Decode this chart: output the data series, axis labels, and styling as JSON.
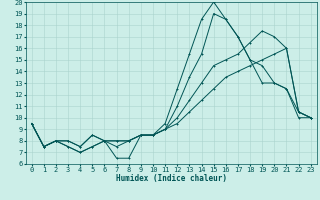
{
  "title": "",
  "xlabel": "Humidex (Indice chaleur)",
  "background_color": "#cceee8",
  "grid_color": "#aad4ce",
  "line_color": "#005555",
  "xlim": [
    -0.5,
    23.5
  ],
  "ylim": [
    6,
    20
  ],
  "xticks": [
    0,
    1,
    2,
    3,
    4,
    5,
    6,
    7,
    8,
    9,
    10,
    11,
    12,
    13,
    14,
    15,
    16,
    17,
    18,
    19,
    20,
    21,
    22,
    23
  ],
  "yticks": [
    6,
    7,
    8,
    9,
    10,
    11,
    12,
    13,
    14,
    15,
    16,
    17,
    18,
    19,
    20
  ],
  "lines": [
    {
      "x": [
        0,
        1,
        2,
        3,
        4,
        5,
        6,
        7,
        8,
        9,
        10,
        11,
        12,
        13,
        14,
        15,
        16,
        17,
        18,
        19,
        20,
        21,
        22,
        23
      ],
      "y": [
        9.5,
        7.5,
        8.0,
        8.0,
        7.5,
        8.5,
        8.0,
        7.5,
        8.0,
        8.5,
        8.5,
        9.5,
        12.5,
        15.5,
        18.5,
        20.0,
        18.5,
        17.0,
        15.0,
        14.5,
        13.0,
        12.5,
        10.5,
        10.0
      ]
    },
    {
      "x": [
        0,
        1,
        2,
        3,
        4,
        5,
        6,
        7,
        8,
        9,
        10,
        11,
        12,
        13,
        14,
        15,
        16,
        17,
        18,
        19,
        20,
        21,
        22,
        23
      ],
      "y": [
        9.5,
        7.5,
        8.0,
        8.0,
        7.5,
        8.5,
        8.0,
        6.5,
        6.5,
        8.5,
        8.5,
        9.0,
        11.0,
        13.5,
        15.5,
        19.0,
        18.5,
        17.0,
        15.0,
        13.0,
        13.0,
        12.5,
        10.0,
        10.0
      ]
    },
    {
      "x": [
        0,
        1,
        2,
        3,
        4,
        5,
        6,
        7,
        8,
        9,
        10,
        11,
        12,
        13,
        14,
        15,
        16,
        17,
        18,
        19,
        20,
        21,
        22,
        23
      ],
      "y": [
        9.5,
        7.5,
        8.0,
        7.5,
        7.0,
        7.5,
        8.0,
        8.0,
        8.0,
        8.5,
        8.5,
        9.0,
        10.0,
        11.5,
        13.0,
        14.5,
        15.0,
        15.5,
        16.5,
        17.5,
        17.0,
        16.0,
        10.5,
        10.0
      ]
    },
    {
      "x": [
        0,
        1,
        2,
        3,
        4,
        5,
        6,
        7,
        8,
        9,
        10,
        11,
        12,
        13,
        14,
        15,
        16,
        17,
        18,
        19,
        20,
        21,
        22,
        23
      ],
      "y": [
        9.5,
        7.5,
        8.0,
        7.5,
        7.0,
        7.5,
        8.0,
        8.0,
        8.0,
        8.5,
        8.5,
        9.0,
        9.5,
        10.5,
        11.5,
        12.5,
        13.5,
        14.0,
        14.5,
        15.0,
        15.5,
        16.0,
        10.5,
        10.0
      ]
    }
  ],
  "axis_fontsize": 5.5,
  "tick_fontsize": 5.0,
  "linewidth": 0.7,
  "markersize": 1.8
}
